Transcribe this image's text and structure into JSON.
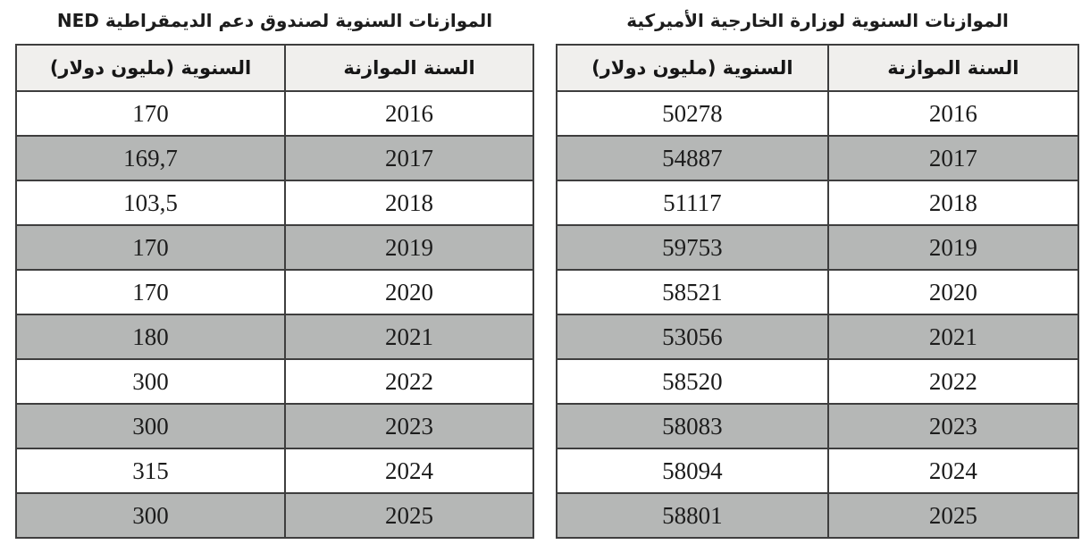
{
  "colors": {
    "background": "#ffffff",
    "alt_row": "#b5b7b6",
    "header_bg": "#f0efed",
    "border": "#3e3e3e",
    "text": "#1c1c1c"
  },
  "tables": [
    {
      "name": "us-state-department-annual-budgets",
      "title": "الموازنات السنوية لوزارة الخارجية الأميركية",
      "columns": {
        "year": "السنة الموازنة",
        "amount": "السنوية (مليون دولار)"
      },
      "rows": [
        {
          "year": "2016",
          "amount": "50278"
        },
        {
          "year": "2017",
          "amount": "54887"
        },
        {
          "year": "2018",
          "amount": "51117"
        },
        {
          "year": "2019",
          "amount": "59753"
        },
        {
          "year": "2020",
          "amount": "58521"
        },
        {
          "year": "2021",
          "amount": "53056"
        },
        {
          "year": "2022",
          "amount": "58520"
        },
        {
          "year": "2023",
          "amount": "58083"
        },
        {
          "year": "2024",
          "amount": "58094"
        },
        {
          "year": "2025",
          "amount": "58801"
        }
      ]
    },
    {
      "name": "ned-annual-budgets",
      "title": "الموازنات السنوية لصندوق دعم الديمقراطية NED",
      "columns": {
        "year": "السنة الموازنة",
        "amount": "السنوية (مليون دولار)"
      },
      "rows": [
        {
          "year": "2016",
          "amount": "170"
        },
        {
          "year": "2017",
          "amount": "169,7"
        },
        {
          "year": "2018",
          "amount": "103,5"
        },
        {
          "year": "2019",
          "amount": "170"
        },
        {
          "year": "2020",
          "amount": "170"
        },
        {
          "year": "2021",
          "amount": "180"
        },
        {
          "year": "2022",
          "amount": "300"
        },
        {
          "year": "2023",
          "amount": "300"
        },
        {
          "year": "2024",
          "amount": "315"
        },
        {
          "year": "2025",
          "amount": "300"
        }
      ]
    }
  ],
  "chart_data": [
    {
      "type": "table",
      "title": "الموازنات السنوية لوزارة الخارجية الأميركية",
      "columns": [
        "السنة الموازنة",
        "السنوية (مليون دولار)"
      ],
      "unit": "مليون دولار",
      "x": [
        2016,
        2017,
        2018,
        2019,
        2020,
        2021,
        2022,
        2023,
        2024,
        2025
      ],
      "values": [
        50278,
        54887,
        51117,
        59753,
        58521,
        53056,
        58520,
        58083,
        58094,
        58801
      ]
    },
    {
      "type": "table",
      "title": "الموازنات السنوية لصندوق دعم الديمقراطية NED",
      "columns": [
        "السنة الموازنة",
        "السنوية (مليون دولار)"
      ],
      "unit": "مليون دولار",
      "x": [
        2016,
        2017,
        2018,
        2019,
        2020,
        2021,
        2022,
        2023,
        2024,
        2025
      ],
      "values": [
        170,
        169.7,
        103.5,
        170,
        170,
        180,
        300,
        300,
        315,
        300
      ]
    }
  ]
}
